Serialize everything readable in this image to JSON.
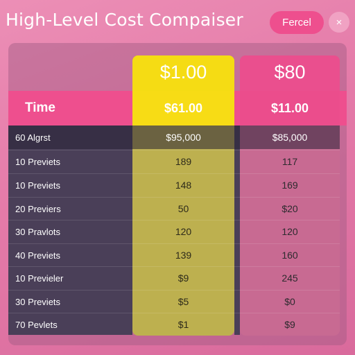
{
  "header": {
    "title": "High-Level Cost Compaiser",
    "action_label": "Fercel",
    "close_label": "×"
  },
  "plans": [
    {
      "price": "$1.00",
      "sub_price": "$61.00"
    },
    {
      "price": "$80",
      "sub_price": "$11.00"
    }
  ],
  "table": {
    "row_header_label": "Time",
    "rows": [
      {
        "label": "60 Algrst",
        "a": "$95,000",
        "b": "$85,000"
      },
      {
        "label": "10 Previets",
        "a": "189",
        "b": "117"
      },
      {
        "label": "10 Previets",
        "a": "148",
        "b": "169"
      },
      {
        "label": "20 Previers",
        "a": "50",
        "b": "$20"
      },
      {
        "label": "30 Pravlots",
        "a": "120",
        "b": "120"
      },
      {
        "label": "40 Previets",
        "a": "139",
        "b": "160"
      },
      {
        "label": "10 Previeler",
        "a": "$9",
        "b": "245"
      },
      {
        "label": "30 Previets",
        "a": "$5",
        "b": "$0"
      },
      {
        "label": "70 Pevlets",
        "a": "$1",
        "b": "$9"
      }
    ]
  },
  "colors": {
    "background": "#e47aa8",
    "accent_pink": "#ee4f8e",
    "accent_yellow": "#f5dc14",
    "row_dark": "#4a3f58"
  }
}
